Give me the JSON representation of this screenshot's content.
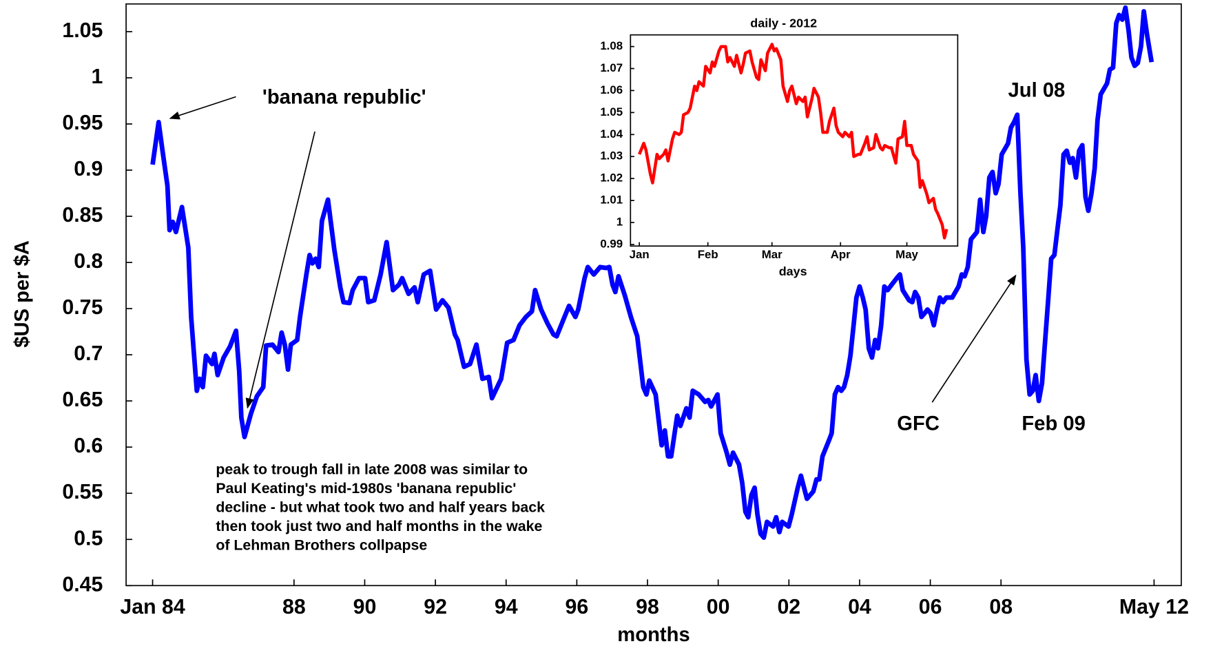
{
  "chart_data": [
    {
      "type": "line",
      "y_label": "$US per $A",
      "x_label": "months",
      "xlim": [
        1983.25,
        2013.1
      ],
      "ylim": [
        0.45,
        1.08
      ],
      "xticks": [
        {
          "value": 1984,
          "label": "Jan 84"
        },
        {
          "value": 1988,
          "label": "88"
        },
        {
          "value": 1990,
          "label": "90"
        },
        {
          "value": 1992,
          "label": "92"
        },
        {
          "value": 1994,
          "label": "94"
        },
        {
          "value": 1996,
          "label": "96"
        },
        {
          "value": 1998,
          "label": "98"
        },
        {
          "value": 2000,
          "label": "00"
        },
        {
          "value": 2002,
          "label": "02"
        },
        {
          "value": 2004,
          "label": "04"
        },
        {
          "value": 2006,
          "label": "06"
        },
        {
          "value": 2008,
          "label": "08"
        },
        {
          "value": 2012.33,
          "label": "May 12"
        }
      ],
      "yticks": [
        0.45,
        0.5,
        0.55,
        0.6,
        0.65,
        0.7,
        0.75,
        0.8,
        0.85,
        0.9,
        0.95,
        1,
        1.05
      ],
      "annotations": [
        "'banana republic'",
        "Jul 08",
        "GFC",
        "Feb 09"
      ],
      "note_lines": [
        "peak to trough fall in late 2008 was similar to",
        "Paul Keating's mid-1980s 'banana republic'",
        "decline - but what took two and half years back",
        "then took just two and half months in the wake",
        "of Lehman Brothers collpapse"
      ],
      "x": [
        1984.0,
        1984.17,
        1984.28,
        1984.42,
        1984.48,
        1984.57,
        1984.66,
        1984.83,
        1985.01,
        1985.09,
        1985.25,
        1985.33,
        1985.42,
        1985.51,
        1985.68,
        1985.75,
        1985.84,
        1986.01,
        1986.19,
        1986.36,
        1986.45,
        1986.51,
        1986.6,
        1986.78,
        1986.95,
        1987.13,
        1987.21,
        1987.39,
        1987.56,
        1987.65,
        1987.74,
        1987.83,
        1987.91,
        1988.09,
        1988.17,
        1988.35,
        1988.44,
        1988.52,
        1988.61,
        1988.7,
        1988.79,
        1988.96,
        1989.14,
        1989.31,
        1989.4,
        1989.57,
        1989.66,
        1989.84,
        1990.01,
        1990.1,
        1990.27,
        1990.45,
        1990.62,
        1990.8,
        1990.97,
        1991.06,
        1991.24,
        1991.41,
        1991.5,
        1991.67,
        1991.85,
        1992.02,
        1992.2,
        1992.37,
        1992.55,
        1992.63,
        1992.81,
        1992.98,
        1993.16,
        1993.33,
        1993.51,
        1993.6,
        1993.86,
        1994.03,
        1994.21,
        1994.38,
        1994.56,
        1994.73,
        1994.82,
        1994.99,
        1995.17,
        1995.34,
        1995.43,
        1995.61,
        1995.78,
        1995.96,
        1996.04,
        1996.22,
        1996.31,
        1996.48,
        1996.66,
        1996.83,
        1996.92,
        1997.01,
        1997.09,
        1997.18,
        1997.36,
        1997.53,
        1997.71,
        1997.88,
        1997.97,
        1998.05,
        1998.23,
        1998.4,
        1998.49,
        1998.58,
        1998.67,
        1998.84,
        1998.93,
        1999.1,
        1999.19,
        1999.28,
        1999.45,
        1999.63,
        1999.72,
        1999.8,
        1999.98,
        2000.07,
        2000.24,
        2000.33,
        2000.42,
        2000.59,
        2000.68,
        2000.77,
        2000.85,
        2000.94,
        2001.03,
        2001.11,
        2001.2,
        2001.29,
        2001.38,
        2001.55,
        2001.64,
        2001.73,
        2001.81,
        2001.99,
        2002.08,
        2002.25,
        2002.34,
        2002.51,
        2002.69,
        2002.78,
        2002.86,
        2002.95,
        2003.13,
        2003.21,
        2003.3,
        2003.39,
        2003.48,
        2003.56,
        2003.65,
        2003.74,
        2003.83,
        2003.91,
        2004.0,
        2004.09,
        2004.17,
        2004.26,
        2004.35,
        2004.44,
        2004.52,
        2004.61,
        2004.7,
        2004.79,
        2004.87,
        2005.05,
        2005.14,
        2005.22,
        2005.4,
        2005.49,
        2005.57,
        2005.66,
        2005.75,
        2005.84,
        2005.92,
        2006.01,
        2006.1,
        2006.19,
        2006.27,
        2006.36,
        2006.45,
        2006.62,
        2006.8,
        2006.89,
        2006.97,
        2007.06,
        2007.15,
        2007.32,
        2007.41,
        2007.5,
        2007.58,
        2007.67,
        2007.76,
        2007.85,
        2007.93,
        2008.02,
        2008.2,
        2008.28,
        2008.37,
        2008.46,
        2008.55,
        2008.63,
        2008.72,
        2008.81,
        2008.9,
        2008.98,
        2009.07,
        2009.16,
        2009.25,
        2009.33,
        2009.42,
        2009.51,
        2009.6,
        2009.68,
        2009.77,
        2009.86,
        2009.95,
        2010.03,
        2010.12,
        2010.21,
        2010.3,
        2010.39,
        2010.47,
        2010.56,
        2010.65,
        2010.73,
        2010.82,
        2011.0,
        2011.08,
        2011.17,
        2011.26,
        2011.34,
        2011.43,
        2011.52,
        2011.61,
        2011.69,
        2011.78,
        2011.87,
        2011.96,
        2012.04,
        2012.13,
        2012.26
      ],
      "series": [
        {
          "color": "#0000ff",
          "values": [
            0.906,
            0.952,
            0.921,
            0.883,
            0.835,
            0.844,
            0.833,
            0.86,
            0.816,
            0.741,
            0.661,
            0.674,
            0.665,
            0.699,
            0.69,
            0.701,
            0.678,
            0.697,
            0.709,
            0.726,
            0.682,
            0.632,
            0.611,
            0.636,
            0.655,
            0.665,
            0.71,
            0.711,
            0.703,
            0.724,
            0.711,
            0.684,
            0.711,
            0.716,
            0.741,
            0.787,
            0.808,
            0.799,
            0.804,
            0.795,
            0.845,
            0.868,
            0.814,
            0.773,
            0.757,
            0.756,
            0.77,
            0.783,
            0.783,
            0.757,
            0.759,
            0.787,
            0.822,
            0.77,
            0.776,
            0.783,
            0.766,
            0.773,
            0.757,
            0.787,
            0.791,
            0.749,
            0.759,
            0.751,
            0.722,
            0.716,
            0.687,
            0.69,
            0.711,
            0.674,
            0.676,
            0.653,
            0.674,
            0.713,
            0.716,
            0.732,
            0.741,
            0.747,
            0.77,
            0.749,
            0.734,
            0.722,
            0.72,
            0.737,
            0.753,
            0.741,
            0.749,
            0.783,
            0.795,
            0.787,
            0.795,
            0.794,
            0.795,
            0.776,
            0.768,
            0.785,
            0.764,
            0.741,
            0.72,
            0.665,
            0.657,
            0.672,
            0.657,
            0.602,
            0.618,
            0.59,
            0.59,
            0.634,
            0.623,
            0.642,
            0.632,
            0.661,
            0.657,
            0.649,
            0.651,
            0.644,
            0.657,
            0.615,
            0.594,
            0.581,
            0.594,
            0.581,
            0.561,
            0.53,
            0.524,
            0.548,
            0.556,
            0.527,
            0.506,
            0.502,
            0.519,
            0.514,
            0.524,
            0.508,
            0.519,
            0.514,
            0.527,
            0.556,
            0.569,
            0.544,
            0.552,
            0.565,
            0.565,
            0.59,
            0.607,
            0.615,
            0.657,
            0.665,
            0.661,
            0.665,
            0.678,
            0.699,
            0.732,
            0.762,
            0.774,
            0.762,
            0.749,
            0.707,
            0.697,
            0.716,
            0.707,
            0.732,
            0.774,
            0.77,
            0.774,
            0.783,
            0.787,
            0.77,
            0.759,
            0.757,
            0.768,
            0.762,
            0.741,
            0.745,
            0.749,
            0.745,
            0.732,
            0.749,
            0.762,
            0.757,
            0.762,
            0.762,
            0.774,
            0.787,
            0.785,
            0.795,
            0.825,
            0.833,
            0.868,
            0.833,
            0.85,
            0.892,
            0.898,
            0.875,
            0.885,
            0.917,
            0.929,
            0.946,
            0.952,
            0.96,
            0.875,
            0.816,
            0.695,
            0.657,
            0.661,
            0.678,
            0.65,
            0.669,
            0.716,
            0.757,
            0.804,
            0.808,
            0.837,
            0.862,
            0.917,
            0.921,
            0.908,
            0.913,
            0.892,
            0.921,
            0.927,
            0.871,
            0.856,
            0.875,
            0.902,
            0.954,
            0.982,
            0.994,
            1.009,
            1.011,
            1.059,
            1.068,
            1.063,
            1.076,
            1.051,
            1.022,
            1.013,
            1.016,
            1.034,
            1.072,
            1.047,
            1.017
          ]
        }
      ]
    },
    {
      "type": "line",
      "title": "daily - 2012",
      "x_label": "days",
      "xlim": [
        -3,
        145
      ],
      "ylim": [
        0.9893,
        1.0853
      ],
      "xticks": [
        {
          "value": 1,
          "label": "Jan"
        },
        {
          "value": 32,
          "label": "Feb"
        },
        {
          "value": 61,
          "label": "Mar"
        },
        {
          "value": 92,
          "label": "Apr"
        },
        {
          "value": 122,
          "label": "May"
        }
      ],
      "yticks": [
        0.99,
        1,
        1.01,
        1.02,
        1.03,
        1.04,
        1.05,
        1.06,
        1.07,
        1.08
      ],
      "x": [
        1,
        3,
        4,
        6,
        7,
        9,
        10,
        12,
        13,
        14,
        16,
        17,
        19,
        20,
        21,
        23,
        24,
        26,
        27,
        28,
        30,
        31,
        33,
        34,
        35,
        37,
        38,
        40,
        41,
        42,
        44,
        45,
        47,
        48,
        49,
        51,
        52,
        54,
        55,
        56,
        58,
        59,
        61,
        62,
        63,
        65,
        66,
        68,
        69,
        70,
        72,
        73,
        75,
        76,
        77,
        79,
        80,
        82,
        83,
        84,
        86,
        87,
        89,
        90,
        91,
        93,
        94,
        96,
        97,
        98,
        100,
        101,
        103,
        104,
        105,
        107,
        108,
        110,
        111,
        112,
        114,
        115,
        117,
        118,
        120,
        121,
        122,
        124,
        125,
        127,
        128,
        129,
        131,
        132,
        134,
        135,
        136,
        138,
        139,
        140
      ],
      "series": [
        {
          "color": "#ff0000",
          "values": [
            1.031,
            1.036,
            1.033,
            1.022,
            1.018,
            1.031,
            1.029,
            1.031,
            1.033,
            1.028,
            1.038,
            1.041,
            1.04,
            1.041,
            1.049,
            1.05,
            1.052,
            1.062,
            1.06,
            1.064,
            1.062,
            1.071,
            1.068,
            1.073,
            1.071,
            1.078,
            1.08,
            1.08,
            1.073,
            1.075,
            1.071,
            1.076,
            1.068,
            1.072,
            1.077,
            1.078,
            1.073,
            1.066,
            1.065,
            1.074,
            1.069,
            1.077,
            1.081,
            1.078,
            1.079,
            1.074,
            1.062,
            1.055,
            1.06,
            1.062,
            1.054,
            1.057,
            1.055,
            1.057,
            1.048,
            1.056,
            1.061,
            1.057,
            1.05,
            1.041,
            1.041,
            1.046,
            1.052,
            1.044,
            1.041,
            1.039,
            1.041,
            1.039,
            1.041,
            1.03,
            1.031,
            1.031,
            1.036,
            1.039,
            1.033,
            1.034,
            1.04,
            1.034,
            1.033,
            1.035,
            1.034,
            1.034,
            1.027,
            1.038,
            1.039,
            1.046,
            1.035,
            1.035,
            1.031,
            1.028,
            1.016,
            1.019,
            1.013,
            1.009,
            1.011,
            1.006,
            1.004,
            0.999,
            0.993,
            0.997
          ]
        }
      ]
    }
  ]
}
